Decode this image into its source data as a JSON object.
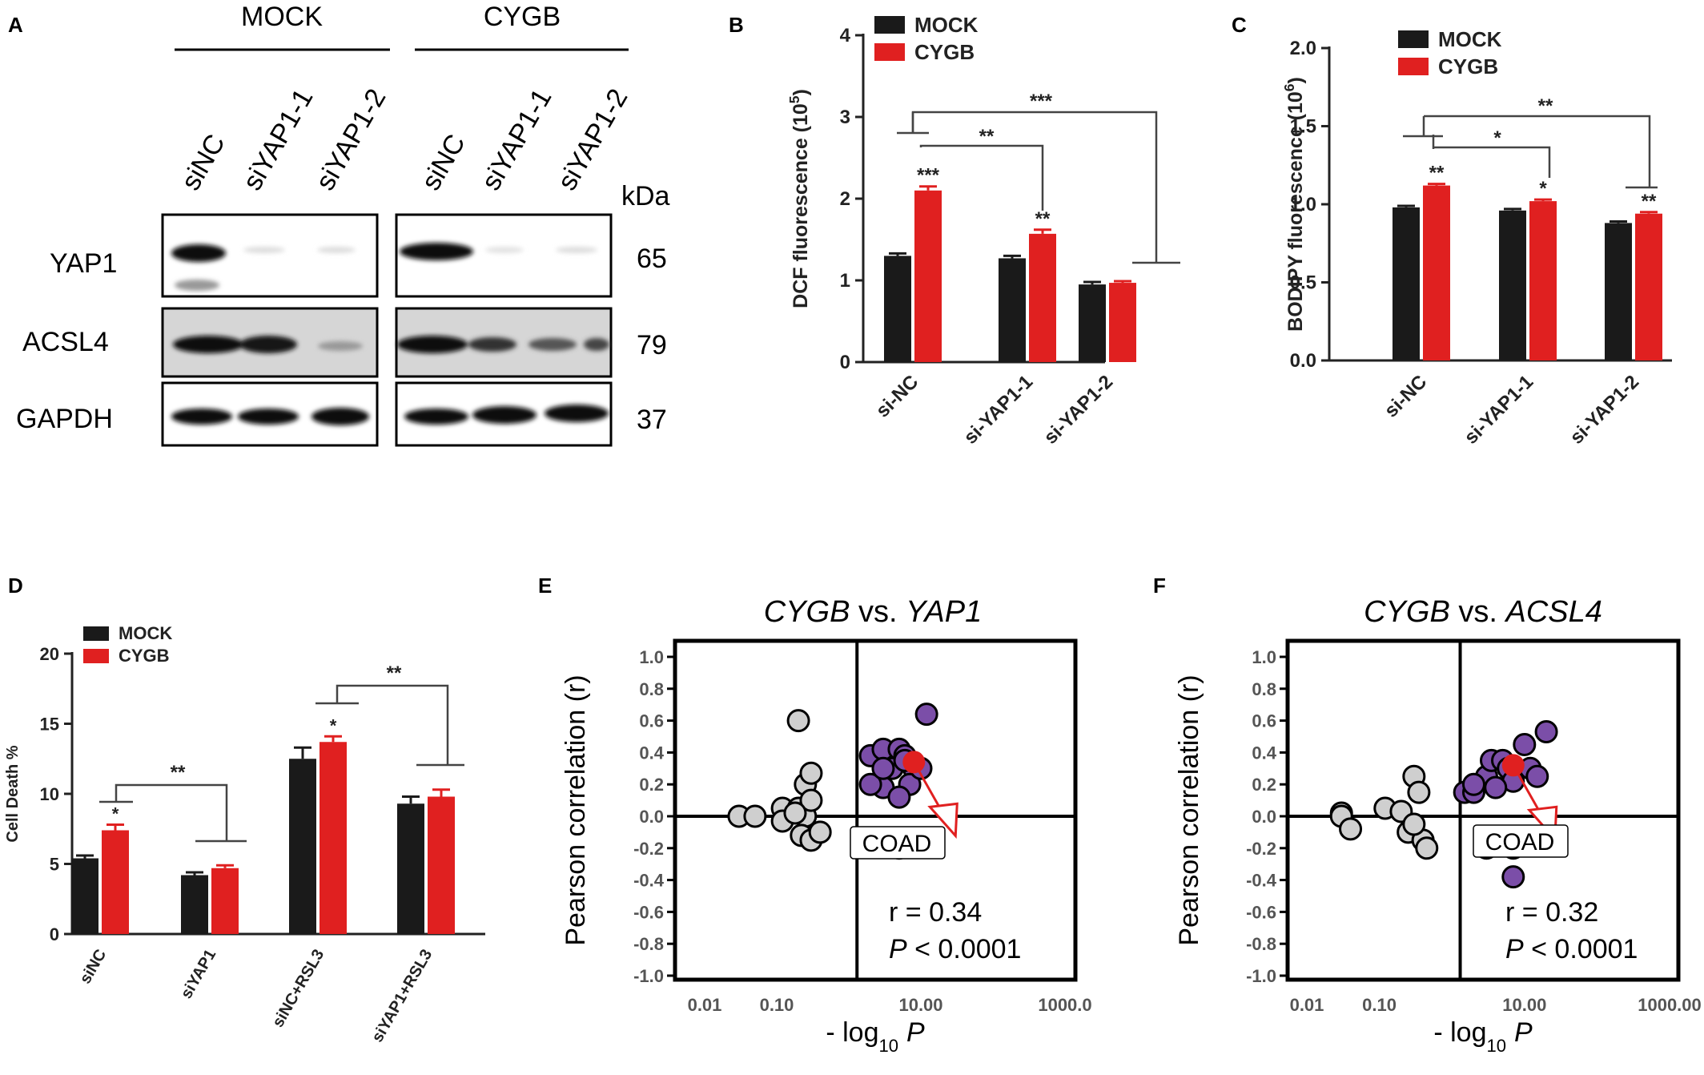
{
  "panels": {
    "A": "A",
    "B": "B",
    "C": "C",
    "D": "D",
    "E": "E",
    "F": "F"
  },
  "blot": {
    "groups": [
      "MOCK",
      "CYGB"
    ],
    "lanes": [
      "siNC",
      "siYAP1-1",
      "siYAP1-2",
      "siNC",
      "siYAP1-1",
      "siYAP1-2"
    ],
    "kda_label": "kDa",
    "rows": [
      {
        "protein": "YAP1",
        "kda": "65"
      },
      {
        "protein": "ACSL4",
        "kda": "79"
      },
      {
        "protein": "GAPDH",
        "kda": "37"
      }
    ]
  },
  "chart_data": [
    {
      "panel": "B",
      "type": "bar",
      "ylabel": "DCF fluorescence (10^5)",
      "ylabel_main": "DCF fluorescence (10",
      "ylabel_exp": "5",
      "ylim": [
        0,
        4
      ],
      "yticks": [
        "0",
        "1",
        "2",
        "3",
        "4"
      ],
      "categories": [
        "si-NC",
        "si-YAP1-1",
        "si-YAP1-2"
      ],
      "series": [
        {
          "name": "MOCK",
          "color": "#1a1a1a",
          "values": [
            1.3,
            1.27,
            0.95
          ],
          "errors": [
            0.03,
            0.03,
            0.03
          ]
        },
        {
          "name": "CYGB",
          "color": "#e02020",
          "values": [
            2.1,
            1.57,
            0.97
          ],
          "errors": [
            0.05,
            0.05,
            0.02
          ]
        }
      ],
      "bar_stars": [
        "",
        "***",
        "",
        "**",
        "",
        ""
      ],
      "comparisons": [
        "**",
        "***"
      ],
      "legend_position": "top-left"
    },
    {
      "panel": "C",
      "type": "bar",
      "ylabel": "BODIPY fluorescence (10^6)",
      "ylabel_main": "BODIPY fluorescence (10",
      "ylabel_exp": "6",
      "ylim": [
        0,
        2
      ],
      "yticks": [
        "0.0",
        "0.5",
        "1.0",
        "1.5",
        "2.0"
      ],
      "categories": [
        "si-NC",
        "si-YAP1-1",
        "si-YAP1-2"
      ],
      "series": [
        {
          "name": "MOCK",
          "color": "#1a1a1a",
          "values": [
            0.98,
            0.96,
            0.88
          ],
          "errors": [
            0.01,
            0.01,
            0.01
          ]
        },
        {
          "name": "CYGB",
          "color": "#e02020",
          "values": [
            1.12,
            1.02,
            0.94
          ],
          "errors": [
            0.01,
            0.01,
            0.01
          ]
        }
      ],
      "bar_stars": [
        "",
        "**",
        "",
        "*",
        "",
        "**"
      ],
      "comparisons": [
        "*",
        "**"
      ],
      "legend_position": "top-left"
    },
    {
      "panel": "D",
      "type": "bar",
      "ylabel": "Cell Death %",
      "ylim": [
        0,
        20
      ],
      "yticks": [
        "0",
        "5",
        "10",
        "15",
        "20"
      ],
      "categories": [
        "siNC",
        "siYAP1",
        "siNC+RSL3",
        "siYAP1+RSL3"
      ],
      "series": [
        {
          "name": "MOCK",
          "color": "#1a1a1a",
          "values": [
            5.4,
            4.2,
            12.5,
            9.3
          ],
          "errors": [
            0.2,
            0.2,
            0.8,
            0.5
          ]
        },
        {
          "name": "CYGB",
          "color": "#e02020",
          "values": [
            7.4,
            4.7,
            13.7,
            9.8
          ],
          "errors": [
            0.4,
            0.2,
            0.4,
            0.5
          ]
        }
      ],
      "bar_stars": [
        "",
        "*",
        "",
        "",
        "",
        "*",
        "",
        ""
      ],
      "comparisons": [
        "**",
        "**"
      ],
      "legend_position": "top-left"
    },
    {
      "panel": "E",
      "type": "scatter",
      "title_gene1": "CYGB",
      "title_vs": " vs. ",
      "title_gene2": "YAP1",
      "xlabel_main": "- log",
      "xlabel_sub": "10",
      "xlabel_var": "P",
      "ylabel": "Pearson correlation (r)",
      "x_scale": "log",
      "xlim": [
        0.01,
        1000
      ],
      "xticks": [
        "0.01",
        "0.10",
        "10.00",
        "1000.0"
      ],
      "ylim": [
        -1,
        1
      ],
      "yticks": [
        "1.0",
        "0.8",
        "0.6",
        "0.4",
        "0.2",
        "0.0",
        "-0.2",
        "-0.4",
        "-0.6",
        "-0.8",
        "-1.0"
      ],
      "threshold_x": 1.3,
      "threshold_y": 0,
      "points_gray": [
        [
          0.03,
          0.0
        ],
        [
          0.05,
          0.0
        ],
        [
          0.12,
          0.05
        ],
        [
          0.12,
          -0.03
        ],
        [
          0.2,
          0.6
        ],
        [
          0.2,
          0.05
        ],
        [
          0.25,
          0.2
        ],
        [
          0.25,
          0.0
        ],
        [
          0.3,
          0.27
        ],
        [
          0.3,
          0.1
        ],
        [
          0.22,
          -0.12
        ],
        [
          0.3,
          -0.15
        ],
        [
          0.4,
          -0.1
        ],
        [
          0.18,
          0.02
        ]
      ],
      "points_purple": [
        [
          2,
          0.38
        ],
        [
          3,
          0.42
        ],
        [
          5,
          0.42
        ],
        [
          6,
          0.38
        ],
        [
          4,
          0.3
        ],
        [
          8,
          0.3
        ],
        [
          7,
          0.2
        ],
        [
          3,
          0.18
        ],
        [
          2,
          0.2
        ],
        [
          5,
          0.12
        ],
        [
          12,
          0.64
        ],
        [
          2.5,
          -0.15
        ],
        [
          5,
          -0.2
        ],
        [
          10,
          0.3
        ],
        [
          6,
          0.35
        ],
        [
          3,
          0.3
        ]
      ],
      "highlight": {
        "label": "COAD",
        "x": 8,
        "y": 0.34
      },
      "stat_r": "r = 0.34",
      "stat_p_var": "P",
      "stat_p_rest": " < 0.0001"
    },
    {
      "panel": "F",
      "type": "scatter",
      "title_gene1": "CYGB",
      "title_vs": " vs. ",
      "title_gene2": "ACSL4",
      "xlabel_main": "- log",
      "xlabel_sub": "10",
      "xlabel_var": "P",
      "ylabel": "Pearson correlation (r)",
      "x_scale": "log",
      "xlim": [
        0.01,
        1000
      ],
      "xticks": [
        "0.01",
        "0.10",
        "10.00",
        "1000.00"
      ],
      "ylim": [
        -1,
        1
      ],
      "yticks": [
        "1.0",
        "0.8",
        "0.6",
        "0.4",
        "0.2",
        "0.0",
        "-0.2",
        "-0.4",
        "-0.6",
        "-0.8",
        "-1.0"
      ],
      "threshold_x": 1.3,
      "threshold_y": 0,
      "points_gray": [
        [
          0.03,
          0.02
        ],
        [
          0.03,
          0.0
        ],
        [
          0.04,
          -0.08
        ],
        [
          0.12,
          0.05
        ],
        [
          0.2,
          0.03
        ],
        [
          0.25,
          -0.1
        ],
        [
          0.3,
          0.25
        ],
        [
          0.35,
          0.15
        ],
        [
          0.4,
          -0.15
        ],
        [
          0.45,
          -0.2
        ],
        [
          0.3,
          -0.05
        ]
      ],
      "points_purple": [
        [
          1.5,
          0.15
        ],
        [
          2,
          0.15
        ],
        [
          3,
          0.25
        ],
        [
          3.5,
          0.35
        ],
        [
          5,
          0.35
        ],
        [
          6,
          0.3
        ],
        [
          7,
          0.22
        ],
        [
          10,
          0.45
        ],
        [
          12,
          0.3
        ],
        [
          15,
          0.25
        ],
        [
          20,
          0.53
        ],
        [
          4,
          0.18
        ],
        [
          3,
          -0.2
        ],
        [
          7,
          -0.2
        ],
        [
          7,
          -0.38
        ],
        [
          2,
          0.2
        ]
      ],
      "highlight": {
        "label": "COAD",
        "x": 7,
        "y": 0.32
      },
      "stat_r": "r = 0.32",
      "stat_p_var": "P",
      "stat_p_rest": " < 0.0001"
    }
  ]
}
